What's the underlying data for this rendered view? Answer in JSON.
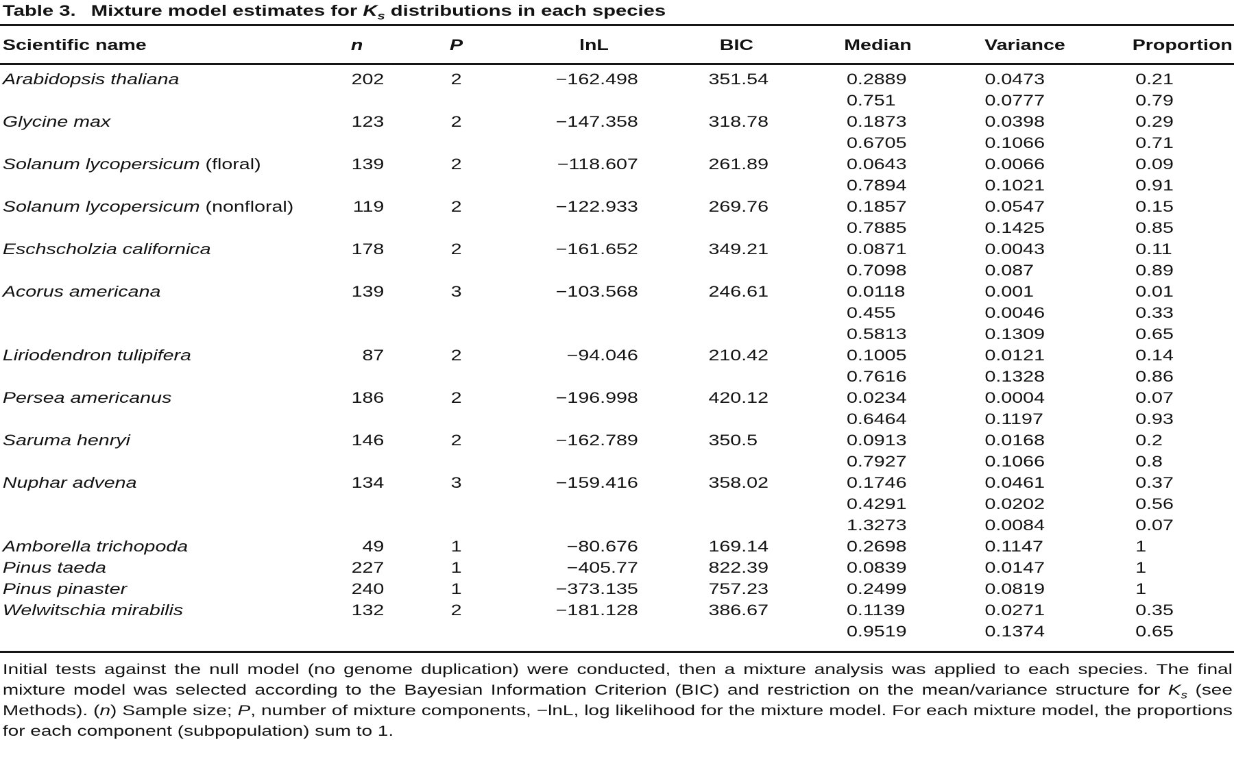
{
  "page": {
    "background": "#ffffff",
    "text_color": "#121212",
    "rule_color": "#161616"
  },
  "title": {
    "label": "Table 3.",
    "segments": [
      {
        "t": "Mixture model estimates for "
      },
      {
        "t": "K",
        "i": true
      },
      {
        "t": "s",
        "i": true,
        "sub": true
      },
      {
        "t": " distributions in each species"
      }
    ]
  },
  "table": {
    "headers": [
      {
        "label": "Scientific name"
      },
      {
        "label": "n",
        "italic": true
      },
      {
        "label": "P",
        "italic": true
      },
      {
        "label": "lnL"
      },
      {
        "label": "BIC"
      },
      {
        "label": "Median"
      },
      {
        "label": "Variance"
      },
      {
        "label": "Proportion"
      }
    ],
    "rows": [
      {
        "name": "Arabidopsis thaliana",
        "qualifier": "",
        "n": "202",
        "p": "2",
        "lnl": "−162.498",
        "bic": "351.54",
        "components": [
          {
            "median": "0.2889",
            "variance": "0.0473",
            "proportion": "0.21"
          },
          {
            "median": "0.751",
            "variance": "0.0777",
            "proportion": "0.79"
          }
        ]
      },
      {
        "name": "Glycine max",
        "qualifier": "",
        "n": "123",
        "p": "2",
        "lnl": "−147.358",
        "bic": "318.78",
        "components": [
          {
            "median": "0.1873",
            "variance": "0.0398",
            "proportion": "0.29"
          },
          {
            "median": "0.6705",
            "variance": "0.1066",
            "proportion": "0.71"
          }
        ]
      },
      {
        "name": "Solanum lycopersicum",
        "qualifier": "(floral)",
        "n": "139",
        "p": "2",
        "lnl": "−118.607",
        "bic": "261.89",
        "components": [
          {
            "median": "0.0643",
            "variance": "0.0066",
            "proportion": "0.09"
          },
          {
            "median": "0.7894",
            "variance": "0.1021",
            "proportion": "0.91"
          }
        ]
      },
      {
        "name": "Solanum lycopersicum",
        "qualifier": "(nonfloral)",
        "n": "119",
        "p": "2",
        "lnl": "−122.933",
        "bic": "269.76",
        "components": [
          {
            "median": "0.1857",
            "variance": "0.0547",
            "proportion": "0.15"
          },
          {
            "median": "0.7885",
            "variance": "0.1425",
            "proportion": "0.85"
          }
        ]
      },
      {
        "name": "Eschscholzia californica",
        "qualifier": "",
        "n": "178",
        "p": "2",
        "lnl": "−161.652",
        "bic": "349.21",
        "components": [
          {
            "median": "0.0871",
            "variance": "0.0043",
            "proportion": "0.11"
          },
          {
            "median": "0.7098",
            "variance": "0.087",
            "proportion": "0.89"
          }
        ]
      },
      {
        "name": "Acorus americana",
        "qualifier": "",
        "n": "139",
        "p": "3",
        "lnl": "−103.568",
        "bic": "246.61",
        "components": [
          {
            "median": "0.0118",
            "variance": "0.001",
            "proportion": "0.01"
          },
          {
            "median": "0.455",
            "variance": "0.0046",
            "proportion": "0.33"
          },
          {
            "median": "0.5813",
            "variance": "0.1309",
            "proportion": "0.65"
          }
        ]
      },
      {
        "name": "Liriodendron tulipifera",
        "qualifier": "",
        "n": "87",
        "p": "2",
        "lnl": "−94.046",
        "bic": "210.42",
        "components": [
          {
            "median": "0.1005",
            "variance": "0.0121",
            "proportion": "0.14"
          },
          {
            "median": "0.7616",
            "variance": "0.1328",
            "proportion": "0.86"
          }
        ]
      },
      {
        "name": "Persea americanus",
        "qualifier": "",
        "n": "186",
        "p": "2",
        "lnl": "−196.998",
        "bic": "420.12",
        "components": [
          {
            "median": "0.0234",
            "variance": "0.0004",
            "proportion": "0.07"
          },
          {
            "median": "0.6464",
            "variance": "0.1197",
            "proportion": "0.93"
          }
        ]
      },
      {
        "name": "Saruma henryi",
        "qualifier": "",
        "n": "146",
        "p": "2",
        "lnl": "−162.789",
        "bic": "350.5",
        "components": [
          {
            "median": "0.0913",
            "variance": "0.0168",
            "proportion": "0.2"
          },
          {
            "median": "0.7927",
            "variance": "0.1066",
            "proportion": "0.8"
          }
        ]
      },
      {
        "name": "Nuphar advena",
        "qualifier": "",
        "n": "134",
        "p": "3",
        "lnl": "−159.416",
        "bic": "358.02",
        "components": [
          {
            "median": "0.1746",
            "variance": "0.0461",
            "proportion": "0.37"
          },
          {
            "median": "0.4291",
            "variance": "0.0202",
            "proportion": "0.56"
          },
          {
            "median": "1.3273",
            "variance": "0.0084",
            "proportion": "0.07"
          }
        ]
      },
      {
        "name": "Amborella trichopoda",
        "qualifier": "",
        "n": "49",
        "p": "1",
        "lnl": "−80.676",
        "bic": "169.14",
        "components": [
          {
            "median": "0.2698",
            "variance": "0.1147",
            "proportion": "1"
          }
        ]
      },
      {
        "name": "Pinus taeda",
        "qualifier": "",
        "n": "227",
        "p": "1",
        "lnl": "−405.77",
        "bic": "822.39",
        "components": [
          {
            "median": "0.0839",
            "variance": "0.0147",
            "proportion": "1"
          }
        ]
      },
      {
        "name": "Pinus pinaster",
        "qualifier": "",
        "n": "240",
        "p": "1",
        "lnl": "−373.135",
        "bic": "757.23",
        "components": [
          {
            "median": "0.2499",
            "variance": "0.0819",
            "proportion": "1"
          }
        ]
      },
      {
        "name": "Welwitschia mirabilis",
        "qualifier": "",
        "n": "132",
        "p": "2",
        "lnl": "−181.128",
        "bic": "386.67",
        "components": [
          {
            "median": "0.1139",
            "variance": "0.0271",
            "proportion": "0.35"
          },
          {
            "median": "0.9519",
            "variance": "0.1374",
            "proportion": "0.65"
          }
        ]
      }
    ]
  },
  "footnote": {
    "segments": [
      {
        "t": "Initial tests against the null model (no genome duplication) were conducted, then a mixture analysis was applied to each species. The final mixture model was selected according to the Bayesian Information Criterion (BIC) and restriction on the mean/variance structure for "
      },
      {
        "t": "K",
        "i": true
      },
      {
        "t": "s",
        "i": true,
        "sub": true
      },
      {
        "t": " (see Methods). ("
      },
      {
        "t": "n",
        "i": true
      },
      {
        "t": ") Sample size; "
      },
      {
        "t": "P",
        "i": true
      },
      {
        "t": ", number of mixture components, −lnL, log likelihood for the mixture model. For each mixture model, the proportions for each component (subpopulation) sum to 1."
      }
    ]
  }
}
